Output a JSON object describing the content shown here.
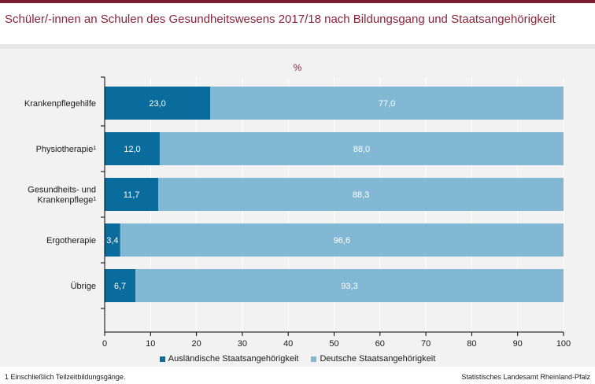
{
  "title": "Schüler/-innen an Schulen des Gesundheitswesens 2017/18 nach Bildungsgang und Staatsangehörigkeit",
  "footnote": "1 Einschließlich Teilzeitbildungsgänge.",
  "source": "Statistisches Landesamt Rheinland-Pfalz",
  "colors": {
    "accent": "#8b2338",
    "dark": "#0a6c9c",
    "light": "#82b8d4",
    "grid": "#ffffff"
  },
  "chart_data": {
    "type": "bar",
    "orientation": "horizontal",
    "stacked": true,
    "unit_label": "%",
    "categories": [
      "Krankenpflegehilfe",
      "Physiotherapie¹",
      "Gesundheits- und Krankenpflege¹",
      "Ergotherapie",
      "Übrige"
    ],
    "category_lines": [
      [
        "Krankenpflegehilfe"
      ],
      [
        "Physiotherapie¹"
      ],
      [
        "Gesundheits- und",
        "Krankenpflege¹"
      ],
      [
        "Ergotherapie"
      ],
      [
        "Übrige"
      ]
    ],
    "series": [
      {
        "name": "Ausländische Staatsangehörigkeit",
        "values": [
          23.0,
          12.0,
          11.7,
          3.4,
          6.7
        ],
        "labels": [
          "23,0",
          "12,0",
          "11,7",
          "3,4",
          "6,7"
        ],
        "color": "#0a6c9c"
      },
      {
        "name": "Deutsche Staatsangehörigkeit",
        "values": [
          77.0,
          88.0,
          88.3,
          96.6,
          93.3
        ],
        "labels": [
          "77,0",
          "88,0",
          "88,3",
          "96,6",
          "93,3"
        ],
        "color": "#82b8d4"
      }
    ],
    "xlim": [
      0,
      100
    ],
    "xticks": [
      0,
      10,
      20,
      30,
      40,
      50,
      60,
      70,
      80,
      90,
      100
    ],
    "grid": true,
    "legend": "bottom-center"
  }
}
